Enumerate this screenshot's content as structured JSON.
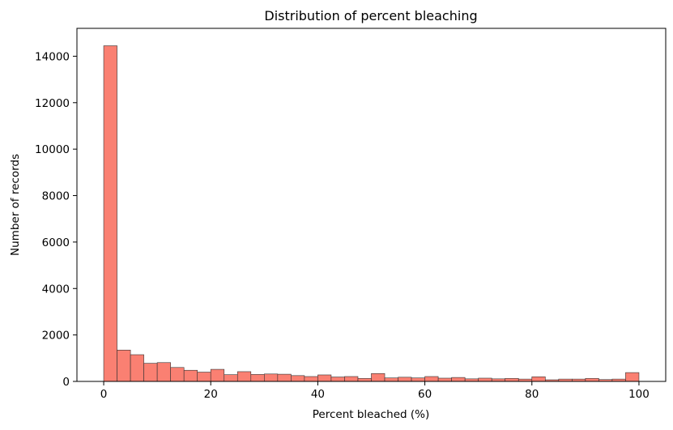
{
  "chart_data": {
    "type": "bar",
    "title": "Distribution of percent bleaching",
    "xlabel": "Percent bleached (%)",
    "ylabel": "Number of records",
    "xlim": [
      -5,
      105
    ],
    "ylim": [
      0,
      15200
    ],
    "xticks": [
      0,
      20,
      40,
      60,
      80,
      100
    ],
    "yticks": [
      0,
      2000,
      4000,
      6000,
      8000,
      10000,
      12000,
      14000
    ],
    "bin_edges": [
      0,
      2.5,
      5,
      7.5,
      10,
      12.5,
      15,
      17.5,
      20,
      22.5,
      25,
      27.5,
      30,
      32.5,
      35,
      37.5,
      40,
      42.5,
      45,
      47.5,
      50,
      52.5,
      55,
      57.5,
      60,
      62.5,
      65,
      67.5,
      70,
      72.5,
      75,
      77.5,
      80,
      82.5,
      85,
      87.5,
      90,
      92.5,
      95,
      97.5,
      100
    ],
    "values": [
      14450,
      1350,
      1150,
      780,
      810,
      600,
      480,
      400,
      520,
      290,
      420,
      300,
      320,
      310,
      250,
      210,
      280,
      190,
      210,
      130,
      340,
      150,
      180,
      150,
      210,
      140,
      170,
      110,
      140,
      110,
      130,
      100,
      200,
      70,
      100,
      100,
      130,
      80,
      100,
      380
    ],
    "colors": {
      "bar_fill": "#fa8072",
      "bar_edge": "#333333",
      "axis": "#000000"
    },
    "grid": false
  }
}
